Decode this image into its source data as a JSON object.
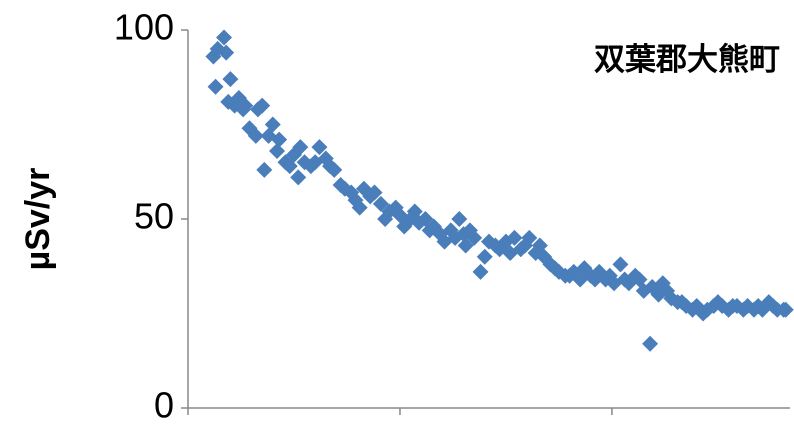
{
  "chart_data": {
    "type": "scatter",
    "annotation": "双葉郡大熊町",
    "y_label": "µSv/yr",
    "color": "#4a7ebb",
    "xlim": [
      0,
      284
    ],
    "xticks": [
      0,
      100,
      200
    ],
    "ylim": [
      0,
      100
    ],
    "yticks": [
      0,
      50,
      100
    ],
    "grid": false,
    "x": [
      12,
      13,
      14,
      17,
      18,
      19,
      20,
      22,
      24,
      26,
      27,
      29,
      32,
      33,
      35,
      36,
      38,
      40,
      42,
      43,
      46,
      48,
      50,
      52,
      53,
      55,
      58,
      60,
      62,
      65,
      67,
      69,
      72,
      74,
      77,
      79,
      81,
      83,
      86,
      88,
      91,
      93,
      95,
      98,
      100,
      102,
      105,
      107,
      109,
      112,
      114,
      116,
      119,
      121,
      124,
      126,
      128,
      130,
      131,
      133,
      135,
      138,
      140,
      142,
      145,
      147,
      150,
      152,
      154,
      157,
      159,
      161,
      164,
      166,
      168,
      171,
      173,
      175,
      178,
      180,
      182,
      185,
      187,
      190,
      192,
      194,
      197,
      199,
      201,
      204,
      206,
      208,
      211,
      213,
      215,
      218,
      219,
      222,
      224,
      226,
      228,
      231,
      233,
      235,
      238,
      240,
      243,
      245,
      248,
      250,
      252,
      255,
      257,
      259,
      262,
      264,
      267,
      269,
      271,
      274,
      276,
      278,
      281,
      282
    ],
    "y": [
      93,
      85,
      95,
      98,
      94,
      81,
      87,
      80,
      82,
      79,
      80,
      74,
      72,
      79,
      80,
      63,
      72,
      75,
      68,
      71,
      65,
      64,
      67,
      61,
      69,
      65,
      64,
      65,
      69,
      66,
      64,
      63,
      59,
      58,
      57,
      55,
      53,
      58,
      56,
      57,
      54,
      50,
      52,
      53,
      51,
      48,
      50,
      52,
      49,
      50,
      47,
      48,
      46,
      44,
      47,
      45,
      50,
      46,
      43,
      47,
      45,
      36,
      40,
      44,
      43,
      42,
      44,
      41,
      45,
      42,
      43,
      45,
      41,
      43,
      40,
      38,
      37,
      36,
      35,
      35,
      36,
      34,
      37,
      35,
      34,
      36,
      34,
      35,
      33,
      38,
      34,
      33,
      35,
      34,
      31,
      17,
      32,
      30,
      33,
      31,
      29,
      28,
      28,
      27,
      26,
      27,
      25,
      26,
      27,
      28,
      27,
      26,
      27,
      27,
      26,
      27,
      26,
      27,
      26,
      28,
      27,
      26,
      26,
      26
    ]
  }
}
